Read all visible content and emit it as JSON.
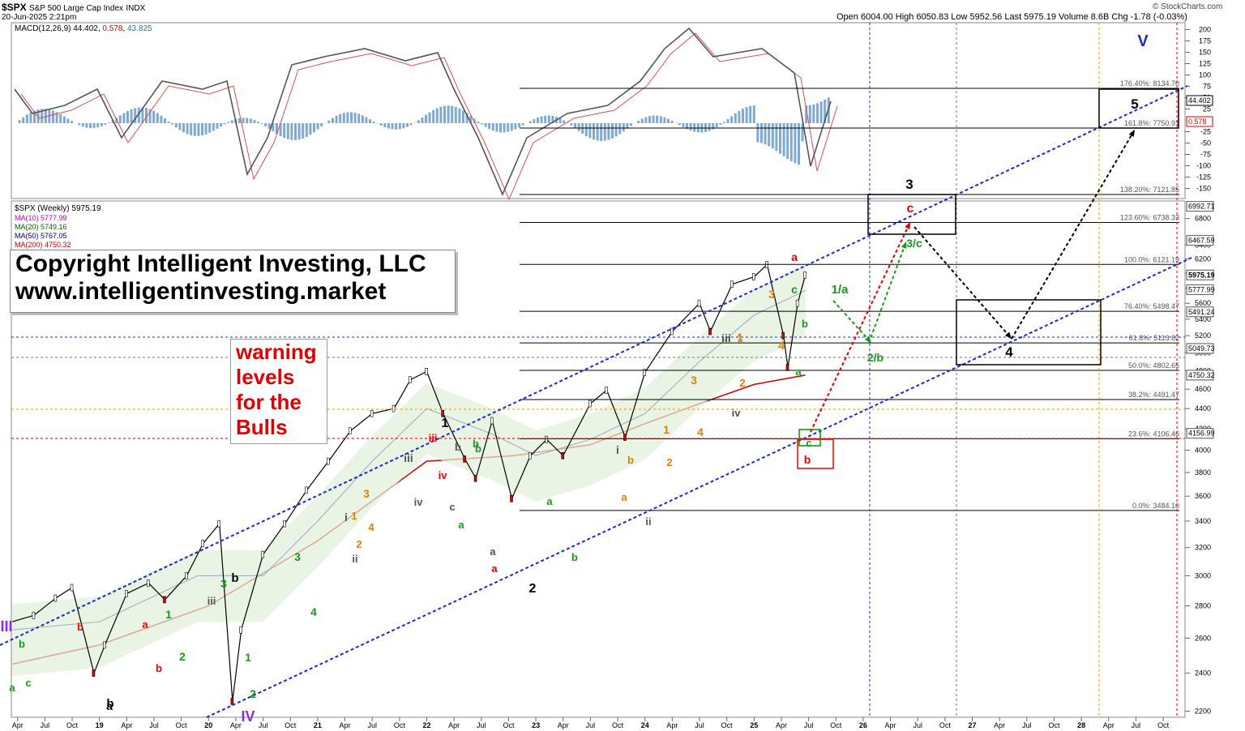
{
  "header": {
    "symbol": "$SPX",
    "name": "S&P 500 Large Cap Index",
    "exchange": "INDX",
    "datetime": "20-Jun-2025 2:21pm",
    "source": "© StockCharts.com",
    "quote": "Open 6004.00  High 6050.83  Low 5952.56  Last 5975.19  Volume 8.6B  Chg -1.78 (-0.03%)"
  },
  "macd": {
    "label": "MACD(12,26,9)",
    "v1": "44.402",
    "v2": "0.578",
    "v3": "43.825",
    "axis": [
      "200",
      "175",
      "150",
      "125",
      "100",
      "75",
      "50",
      "25",
      "-25",
      "-50",
      "-75",
      "-100",
      "-125",
      "-150"
    ],
    "badges": [
      "44.402",
      "0.578"
    ]
  },
  "price_legend": {
    "title": "$SPX (Weekly) 5975.19",
    "ma10": "MA(10) 5777.99",
    "ma20": "MA(20) 5749.16",
    "ma50": "MA(50) 5767.05",
    "ma200": "MA(200) 4750.32"
  },
  "copyright": {
    "line1": "Copyright Intelligent Investing, LLC",
    "line2": "www.intelligentinvesting.market"
  },
  "warning": {
    "l1": "warning",
    "l2": "levels",
    "l3": "for the",
    "l4": "Bulls"
  },
  "chart_data": {
    "type": "line",
    "title": "$SPX (Weekly)",
    "y_axis_scale": "log",
    "ylim": [
      2150,
      7300
    ],
    "x_axis_ticks": [
      "Apr",
      "Jul",
      "Oct",
      "19",
      "Apr",
      "Jul",
      "Oct",
      "20",
      "Apr",
      "Jul",
      "Oct",
      "21",
      "Apr",
      "Jul",
      "Oct",
      "22",
      "Apr",
      "Jul",
      "Oct",
      "23",
      "Apr",
      "Jul",
      "Oct",
      "24",
      "Apr",
      "Jul",
      "Oct",
      "25",
      "Apr",
      "Jul",
      "Oct",
      "26",
      "Apr",
      "Jul",
      "Oct",
      "27",
      "Apr",
      "Jul",
      "Oct",
      "28",
      "Apr",
      "Jul",
      "Oct"
    ],
    "y_axis_ticks": [
      2200,
      2400,
      2600,
      2800,
      3000,
      3200,
      3400,
      3600,
      3800,
      4000,
      4200,
      4400,
      4600,
      4800,
      5000,
      5200,
      5400,
      5600,
      5800,
      6000,
      6200,
      6400,
      6800
    ],
    "price_badges": [
      "6992.71",
      "6467.59",
      "5975.19",
      "5777.99",
      "5491.24",
      "5049.73",
      "4750.32",
      "4156.99"
    ],
    "fib_levels": [
      {
        "label": "176.40%: 8134.70",
        "value": 8134.7
      },
      {
        "label": "161.8%: 7750.91",
        "value": 7750.91
      },
      {
        "label": "138.20%: 7121.85",
        "value": 7121.85
      },
      {
        "label": "123.60%: 6738.33",
        "value": 6738.33
      },
      {
        "label": "100.0%: 6121.19",
        "value": 6121.19
      },
      {
        "label": "76.40%: 5498.47",
        "value": 5498.47
      },
      {
        "label": "61.8%: 5113.82",
        "value": 5113.82
      },
      {
        "label": "50.0%: 4802.65",
        "value": 4802.65
      },
      {
        "label": "38.2%: 4491.47",
        "value": 4491.47
      },
      {
        "label": "23.6%: 4106.46",
        "value": 4106.46
      },
      {
        "label": "0.0%: 3484.10",
        "value": 3484.1
      }
    ],
    "series": [
      {
        "name": "$SPX (Weekly)",
        "color": "#000000",
        "points": [
          [
            2018.2,
            2700
          ],
          [
            2018.4,
            2740
          ],
          [
            2018.6,
            2850
          ],
          [
            2018.75,
            2920
          ],
          [
            2018.95,
            2400
          ],
          [
            2019.05,
            2560
          ],
          [
            2019.25,
            2880
          ],
          [
            2019.45,
            2950
          ],
          [
            2019.6,
            2840
          ],
          [
            2019.8,
            3000
          ],
          [
            2019.95,
            3230
          ],
          [
            2020.1,
            3380
          ],
          [
            2020.22,
            2250
          ],
          [
            2020.3,
            2650
          ],
          [
            2020.5,
            3150
          ],
          [
            2020.7,
            3380
          ],
          [
            2020.9,
            3650
          ],
          [
            2021.1,
            3900
          ],
          [
            2021.3,
            4180
          ],
          [
            2021.5,
            4350
          ],
          [
            2021.7,
            4400
          ],
          [
            2021.85,
            4700
          ],
          [
            2022.0,
            4790
          ],
          [
            2022.15,
            4350
          ],
          [
            2022.35,
            3920
          ],
          [
            2022.45,
            3750
          ],
          [
            2022.6,
            4280
          ],
          [
            2022.78,
            3580
          ],
          [
            2022.95,
            3950
          ],
          [
            2023.1,
            4100
          ],
          [
            2023.25,
            3950
          ],
          [
            2023.5,
            4450
          ],
          [
            2023.65,
            4590
          ],
          [
            2023.82,
            4120
          ],
          [
            2024.0,
            4780
          ],
          [
            2024.25,
            5250
          ],
          [
            2024.5,
            5600
          ],
          [
            2024.6,
            5250
          ],
          [
            2024.8,
            5850
          ],
          [
            2025.0,
            5950
          ],
          [
            2025.12,
            6120
          ],
          [
            2025.27,
            5200
          ],
          [
            2025.31,
            4835
          ],
          [
            2025.4,
            5600
          ],
          [
            2025.47,
            5975.19
          ]
        ]
      },
      {
        "name": "MA(200)",
        "color": "#cc0000",
        "points": [
          [
            2018.2,
            2450
          ],
          [
            2019.0,
            2560
          ],
          [
            2020.0,
            2800
          ],
          [
            2021.0,
            3250
          ],
          [
            2022.0,
            3900
          ],
          [
            2022.8,
            3950
          ],
          [
            2023.5,
            4050
          ],
          [
            2024.0,
            4250
          ],
          [
            2024.5,
            4450
          ],
          [
            2025.0,
            4650
          ],
          [
            2025.47,
            4750.32
          ]
        ]
      },
      {
        "name": "MA(50)",
        "color": "#000080",
        "points": [
          [
            2018.2,
            2650
          ],
          [
            2019.0,
            2700
          ],
          [
            2019.9,
            3000
          ],
          [
            2020.5,
            3000
          ],
          [
            2021.0,
            3400
          ],
          [
            2021.5,
            3900
          ],
          [
            2022.0,
            4400
          ],
          [
            2022.6,
            4150
          ],
          [
            2023.0,
            3950
          ],
          [
            2023.5,
            4100
          ],
          [
            2024.0,
            4350
          ],
          [
            2024.5,
            4900
          ],
          [
            2025.0,
            5450
          ],
          [
            2025.47,
            5767.05
          ]
        ]
      }
    ],
    "wave_labels": [
      "1",
      "2",
      "3",
      "4",
      "5",
      "III",
      "IV",
      "V",
      "a",
      "b",
      "c",
      "1/a",
      "2/b",
      "3/c"
    ]
  }
}
